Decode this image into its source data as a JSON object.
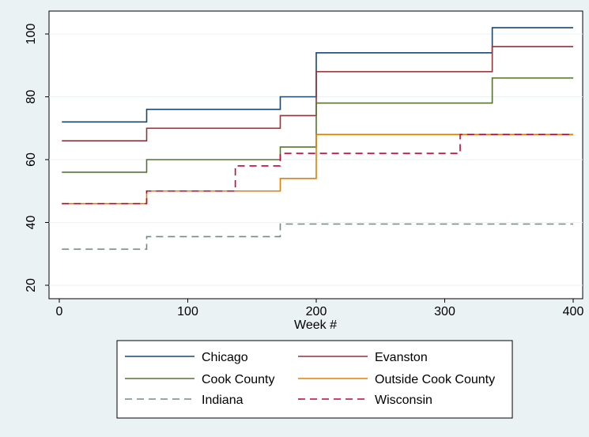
{
  "chart_data": {
    "type": "line",
    "step": true,
    "title": "",
    "xlabel": "Week #",
    "ylabel": "",
    "xlim": [
      0,
      400
    ],
    "ylim": [
      20,
      104
    ],
    "xticks": [
      0,
      100,
      200,
      300,
      400
    ],
    "yticks": [
      20,
      40,
      60,
      80,
      100
    ],
    "grid": "y-major",
    "legend_position": "bottom",
    "series": [
      {
        "name": "Chicago",
        "color": "#1a476f",
        "dash": "solid",
        "x": [
          2,
          68,
          172,
          200,
          337,
          400
        ],
        "y": [
          72,
          76,
          80,
          94,
          102,
          102
        ]
      },
      {
        "name": "Evanston",
        "color": "#90353b",
        "dash": "solid",
        "x": [
          2,
          68,
          172,
          200,
          337,
          400
        ],
        "y": [
          66,
          70,
          74,
          88,
          96,
          96
        ]
      },
      {
        "name": "Cook County",
        "color": "#55752f",
        "dash": "solid",
        "x": [
          2,
          68,
          172,
          200,
          337,
          400
        ],
        "y": [
          56,
          60,
          64,
          78,
          86,
          86
        ]
      },
      {
        "name": "Outside Cook County",
        "color": "#e37e00",
        "dash": "solid",
        "x": [
          2,
          68,
          172,
          200,
          400
        ],
        "y": [
          46,
          50,
          54,
          68,
          68
        ]
      },
      {
        "name": "Indiana",
        "color": "#6e8e84",
        "dash": "dashed",
        "x": [
          2,
          68,
          172,
          400
        ],
        "y": [
          31.5,
          35.5,
          39.5,
          39.5
        ]
      },
      {
        "name": "Wisconsin",
        "color": "#c10534",
        "dash": "dashed",
        "x": [
          2,
          68,
          137,
          172,
          312,
          400
        ],
        "y": [
          46,
          50,
          58,
          62,
          68,
          68
        ]
      }
    ]
  }
}
